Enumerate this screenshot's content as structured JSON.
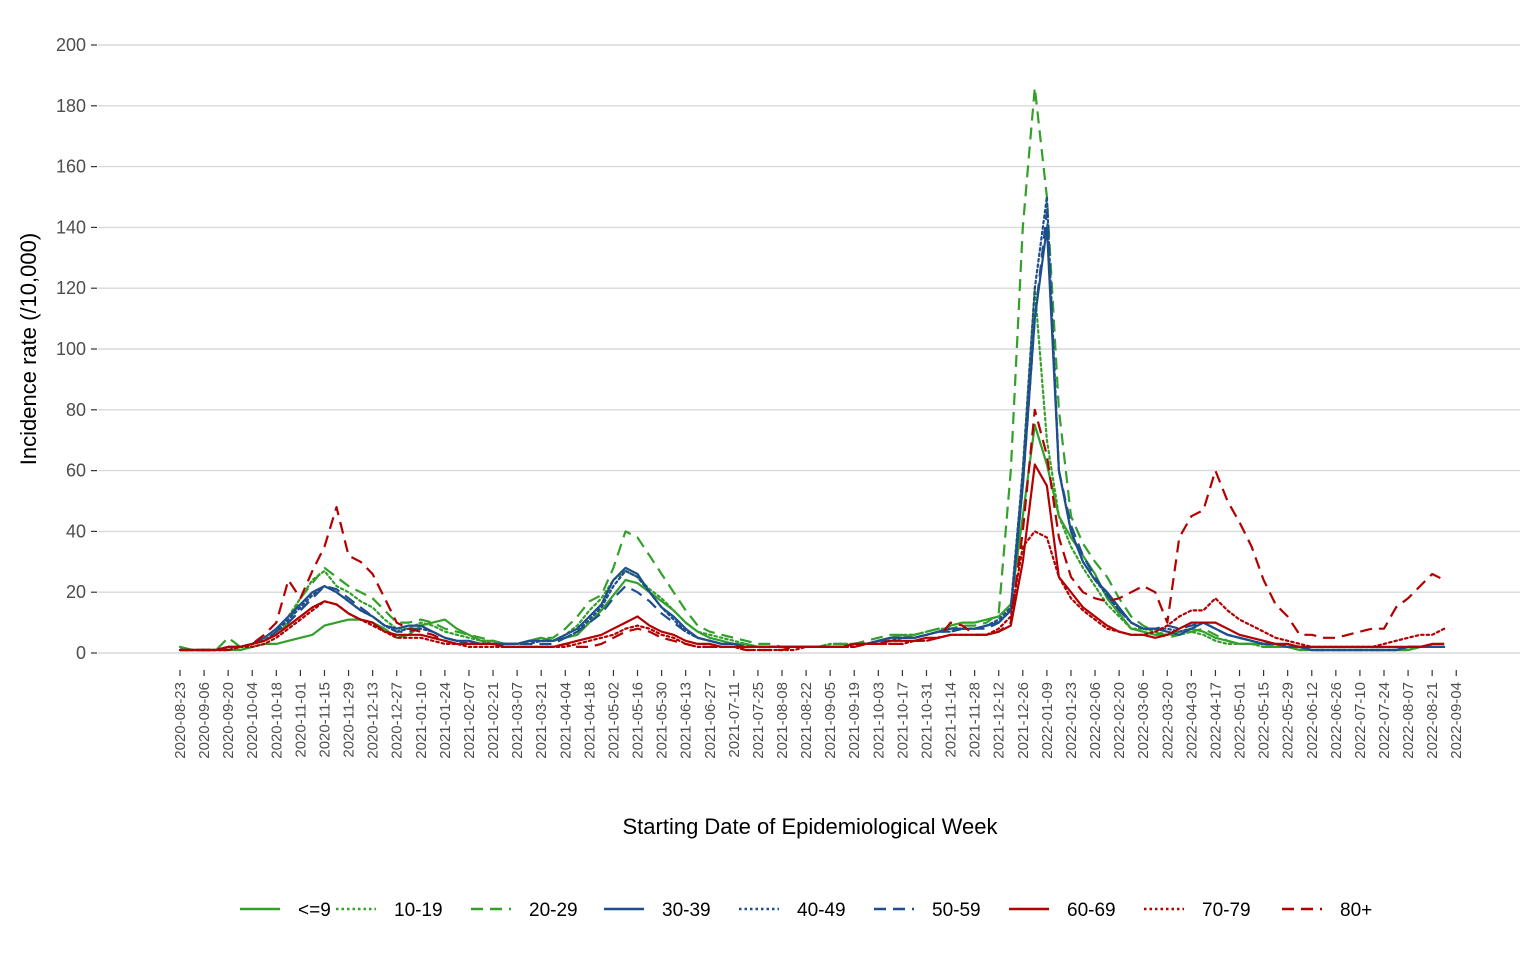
{
  "chart_data": {
    "type": "line",
    "xlabel": "Starting Date of Epidemiological Week",
    "ylabel": "Incidence rate (/10,000)",
    "ylim": [
      0,
      200
    ],
    "yticks": [
      0,
      20,
      40,
      60,
      80,
      100,
      120,
      140,
      160,
      180,
      200
    ],
    "grid": "horizontal",
    "legend_position": "bottom",
    "x": [
      "2020-08-23",
      "2020-08-30",
      "2020-09-06",
      "2020-09-13",
      "2020-09-20",
      "2020-09-27",
      "2020-10-04",
      "2020-10-11",
      "2020-10-18",
      "2020-10-25",
      "2020-11-01",
      "2020-11-08",
      "2020-11-15",
      "2020-11-22",
      "2020-11-29",
      "2020-12-06",
      "2020-12-13",
      "2020-12-20",
      "2020-12-27",
      "2021-01-03",
      "2021-01-10",
      "2021-01-17",
      "2021-01-24",
      "2021-01-31",
      "2021-02-07",
      "2021-02-14",
      "2021-02-21",
      "2021-02-28",
      "2021-03-07",
      "2021-03-14",
      "2021-03-21",
      "2021-03-28",
      "2021-04-04",
      "2021-04-11",
      "2021-04-18",
      "2021-04-25",
      "2021-05-02",
      "2021-05-09",
      "2021-05-16",
      "2021-05-23",
      "2021-05-30",
      "2021-06-06",
      "2021-06-13",
      "2021-06-20",
      "2021-06-27",
      "2021-07-04",
      "2021-07-11",
      "2021-07-18",
      "2021-07-25",
      "2021-08-01",
      "2021-08-08",
      "2021-08-15",
      "2021-08-22",
      "2021-08-29",
      "2021-09-05",
      "2021-09-12",
      "2021-09-19",
      "2021-09-26",
      "2021-10-03",
      "2021-10-10",
      "2021-10-17",
      "2021-10-24",
      "2021-10-31",
      "2021-11-07",
      "2021-11-14",
      "2021-11-21",
      "2021-11-28",
      "2021-12-05",
      "2021-12-12",
      "2021-12-19",
      "2021-12-26",
      "2022-01-02",
      "2022-01-09",
      "2022-01-16",
      "2022-01-23",
      "2022-01-30",
      "2022-02-06",
      "2022-02-13",
      "2022-02-20",
      "2022-02-27",
      "2022-03-06",
      "2022-03-13",
      "2022-03-20",
      "2022-03-27",
      "2022-04-03",
      "2022-04-10",
      "2022-04-17",
      "2022-04-24",
      "2022-05-01",
      "2022-05-08",
      "2022-05-15",
      "2022-05-22",
      "2022-05-29",
      "2022-06-05",
      "2022-06-12",
      "2022-06-19",
      "2022-06-26",
      "2022-07-03",
      "2022-07-10",
      "2022-07-17",
      "2022-07-24",
      "2022-07-31",
      "2022-08-07",
      "2022-08-14",
      "2022-08-21",
      "2022-08-28"
    ],
    "xtick_labels": [
      "2020-08-23",
      "2020-09-06",
      "2020-09-20",
      "2020-10-04",
      "2020-10-18",
      "2020-11-01",
      "2020-11-15",
      "2020-11-29",
      "2020-12-13",
      "2020-12-27",
      "2021-01-10",
      "2021-01-24",
      "2021-02-07",
      "2021-02-21",
      "2021-03-07",
      "2021-03-21",
      "2021-04-04",
      "2021-04-18",
      "2021-05-02",
      "2021-05-16",
      "2021-05-30",
      "2021-06-13",
      "2021-06-27",
      "2021-07-11",
      "2021-07-25",
      "2021-08-08",
      "2021-08-22",
      "2021-09-05",
      "2021-09-19",
      "2021-10-03",
      "2021-10-17",
      "2021-10-31",
      "2021-11-14",
      "2021-11-28",
      "2021-12-12",
      "2021-12-26",
      "2022-01-09",
      "2022-01-23",
      "2022-02-06",
      "2022-02-20",
      "2022-03-06",
      "2022-03-20",
      "2022-04-03",
      "2022-04-17",
      "2022-05-01",
      "2022-05-15",
      "2022-05-29",
      "2022-06-12",
      "2022-06-26",
      "2022-07-10",
      "2022-07-24",
      "2022-08-07",
      "2022-08-21",
      "2022-09-04"
    ],
    "series": [
      {
        "name": "<=9",
        "color": "#33a02c",
        "dash": "solid",
        "values": [
          2,
          1,
          1,
          1,
          1,
          1,
          2,
          3,
          3,
          4,
          5,
          6,
          9,
          10,
          11,
          11,
          10,
          8,
          5,
          6,
          9,
          10,
          11,
          8,
          6,
          4,
          4,
          3,
          3,
          4,
          5,
          4,
          5,
          6,
          10,
          14,
          19,
          24,
          23,
          20,
          17,
          14,
          10,
          7,
          5,
          4,
          3,
          3,
          2,
          2,
          2,
          2,
          2,
          2,
          2,
          2,
          3,
          3,
          4,
          5,
          6,
          5,
          6,
          7,
          9,
          10,
          10,
          11,
          12,
          16,
          45,
          75,
          62,
          45,
          38,
          32,
          26,
          18,
          13,
          8,
          7,
          6,
          6,
          7,
          8,
          7,
          5,
          4,
          3,
          3,
          3,
          2,
          2,
          1,
          1,
          1,
          1,
          1,
          1,
          1,
          1,
          1,
          1,
          2,
          2,
          2
        ]
      },
      {
        "name": "10-19",
        "color": "#33a02c",
        "dash": "dotted",
        "values": [
          2,
          1,
          1,
          1,
          1,
          2,
          3,
          4,
          7,
          12,
          18,
          24,
          27,
          22,
          20,
          17,
          15,
          11,
          8,
          8,
          10,
          9,
          7,
          6,
          5,
          4,
          3,
          3,
          3,
          4,
          4,
          4,
          6,
          9,
          14,
          18,
          24,
          27,
          25,
          21,
          18,
          14,
          10,
          7,
          6,
          5,
          4,
          3,
          2,
          2,
          2,
          2,
          2,
          2,
          3,
          3,
          3,
          3,
          4,
          5,
          6,
          6,
          7,
          8,
          8,
          8,
          8,
          9,
          10,
          14,
          60,
          120,
          70,
          45,
          35,
          28,
          22,
          16,
          12,
          8,
          8,
          7,
          6,
          6,
          7,
          6,
          4,
          3,
          3,
          3,
          2,
          2,
          2,
          1,
          1,
          1,
          1,
          1,
          1,
          1,
          1,
          1,
          1,
          2,
          2,
          2
        ]
      },
      {
        "name": "20-29",
        "color": "#33a02c",
        "dash": "dashed",
        "values": [
          2,
          1,
          1,
          1,
          5,
          2,
          3,
          4,
          6,
          10,
          18,
          23,
          28,
          25,
          22,
          20,
          18,
          14,
          10,
          10,
          11,
          10,
          8,
          7,
          6,
          5,
          4,
          3,
          3,
          4,
          5,
          5,
          8,
          12,
          17,
          19,
          28,
          40,
          38,
          32,
          26,
          20,
          14,
          9,
          7,
          6,
          5,
          4,
          3,
          3,
          2,
          2,
          2,
          2,
          3,
          3,
          3,
          4,
          5,
          6,
          6,
          6,
          7,
          8,
          8,
          9,
          9,
          10,
          13,
          60,
          140,
          186,
          150,
          80,
          45,
          36,
          30,
          25,
          18,
          12,
          9,
          7,
          5,
          6,
          7,
          8,
          6,
          4,
          3,
          3,
          2,
          2,
          2,
          2,
          1,
          1,
          1,
          1,
          1,
          1,
          1,
          1,
          1,
          2,
          2,
          2
        ]
      },
      {
        "name": "30-39",
        "color": "#1f4e8c",
        "dash": "solid",
        "values": [
          1,
          1,
          1,
          1,
          2,
          2,
          3,
          5,
          8,
          12,
          16,
          20,
          22,
          20,
          17,
          14,
          12,
          9,
          8,
          9,
          9,
          7,
          5,
          4,
          4,
          3,
          3,
          3,
          3,
          4,
          4,
          4,
          6,
          8,
          12,
          16,
          24,
          28,
          26,
          20,
          15,
          12,
          8,
          5,
          4,
          3,
          3,
          2,
          2,
          2,
          2,
          2,
          2,
          2,
          2,
          2,
          3,
          3,
          4,
          5,
          5,
          5,
          6,
          7,
          8,
          8,
          8,
          9,
          10,
          14,
          55,
          110,
          140,
          60,
          40,
          30,
          24,
          20,
          15,
          10,
          8,
          8,
          7,
          6,
          8,
          10,
          8,
          6,
          5,
          4,
          3,
          3,
          2,
          2,
          1,
          1,
          1,
          1,
          1,
          1,
          1,
          1,
          2,
          2,
          2,
          2
        ]
      },
      {
        "name": "40-49",
        "color": "#1f4e8c",
        "dash": "dotted",
        "values": [
          1,
          1,
          1,
          1,
          2,
          2,
          3,
          4,
          7,
          11,
          15,
          19,
          22,
          20,
          17,
          14,
          12,
          9,
          7,
          8,
          8,
          7,
          5,
          4,
          3,
          3,
          3,
          3,
          3,
          3,
          4,
          4,
          5,
          7,
          11,
          15,
          22,
          27,
          25,
          20,
          15,
          11,
          7,
          5,
          4,
          3,
          3,
          2,
          2,
          2,
          2,
          2,
          2,
          2,
          2,
          2,
          3,
          3,
          4,
          4,
          5,
          5,
          6,
          7,
          7,
          8,
          8,
          9,
          11,
          15,
          60,
          120,
          150,
          60,
          40,
          30,
          24,
          19,
          14,
          10,
          8,
          8,
          8,
          7,
          8,
          10,
          8,
          6,
          5,
          4,
          3,
          3,
          2,
          2,
          1,
          1,
          1,
          1,
          1,
          1,
          1,
          1,
          2,
          2,
          2,
          2
        ]
      },
      {
        "name": "50-59",
        "color": "#1f4e8c",
        "dash": "dashed",
        "values": [
          1,
          1,
          1,
          1,
          2,
          2,
          3,
          4,
          7,
          10,
          14,
          18,
          22,
          21,
          18,
          15,
          12,
          9,
          7,
          7,
          8,
          7,
          5,
          4,
          3,
          3,
          3,
          3,
          3,
          3,
          3,
          3,
          5,
          7,
          10,
          13,
          18,
          22,
          20,
          17,
          13,
          10,
          7,
          5,
          4,
          3,
          3,
          2,
          2,
          2,
          2,
          2,
          2,
          2,
          2,
          2,
          3,
          3,
          4,
          4,
          5,
          5,
          6,
          7,
          7,
          8,
          8,
          8,
          10,
          14,
          55,
          110,
          145,
          60,
          42,
          32,
          25,
          19,
          14,
          10,
          8,
          8,
          9,
          8,
          9,
          10,
          8,
          6,
          5,
          4,
          3,
          3,
          2,
          2,
          1,
          1,
          1,
          1,
          1,
          1,
          1,
          1,
          2,
          2,
          2,
          2
        ]
      },
      {
        "name": "60-69",
        "color": "#b30000",
        "dash": "solid",
        "values": [
          1,
          1,
          1,
          1,
          2,
          2,
          3,
          4,
          6,
          9,
          12,
          15,
          17,
          16,
          13,
          11,
          10,
          7,
          6,
          6,
          6,
          5,
          4,
          3,
          3,
          3,
          3,
          2,
          2,
          2,
          2,
          2,
          3,
          4,
          5,
          6,
          8,
          10,
          12,
          9,
          7,
          6,
          4,
          3,
          3,
          2,
          2,
          2,
          2,
          2,
          2,
          2,
          2,
          2,
          2,
          2,
          3,
          3,
          3,
          4,
          4,
          4,
          5,
          5,
          6,
          6,
          6,
          6,
          7,
          9,
          30,
          62,
          55,
          25,
          20,
          15,
          12,
          9,
          7,
          6,
          6,
          5,
          6,
          8,
          10,
          10,
          10,
          8,
          6,
          5,
          4,
          3,
          3,
          2,
          2,
          2,
          2,
          2,
          2,
          2,
          2,
          2,
          2,
          2,
          3,
          3
        ]
      },
      {
        "name": "70-79",
        "color": "#b30000",
        "dash": "dotted",
        "values": [
          1,
          1,
          1,
          1,
          1,
          2,
          2,
          3,
          5,
          8,
          11,
          14,
          17,
          16,
          13,
          11,
          9,
          7,
          5,
          5,
          5,
          4,
          3,
          3,
          2,
          2,
          2,
          2,
          2,
          2,
          2,
          2,
          2,
          3,
          4,
          5,
          6,
          8,
          9,
          8,
          6,
          5,
          3,
          2,
          2,
          2,
          2,
          1,
          1,
          1,
          1,
          1,
          2,
          2,
          2,
          2,
          2,
          3,
          3,
          3,
          3,
          4,
          4,
          5,
          6,
          6,
          6,
          6,
          8,
          12,
          35,
          40,
          38,
          25,
          18,
          14,
          11,
          8,
          7,
          6,
          6,
          7,
          9,
          12,
          14,
          14,
          18,
          14,
          11,
          9,
          7,
          5,
          4,
          3,
          2,
          2,
          2,
          2,
          2,
          2,
          3,
          4,
          5,
          6,
          6,
          8
        ]
      },
      {
        "name": "80+",
        "color": "#b30000",
        "dash": "dashed",
        "values": [
          1,
          1,
          1,
          1,
          1,
          2,
          3,
          6,
          10,
          24,
          18,
          27,
          35,
          48,
          32,
          30,
          26,
          18,
          10,
          8,
          7,
          6,
          4,
          3,
          3,
          3,
          3,
          2,
          2,
          2,
          2,
          2,
          3,
          2,
          2,
          3,
          5,
          7,
          8,
          7,
          5,
          4,
          3,
          2,
          2,
          2,
          2,
          1,
          1,
          1,
          1,
          2,
          2,
          2,
          2,
          2,
          2,
          3,
          3,
          3,
          3,
          4,
          4,
          5,
          10,
          9,
          6,
          6,
          7,
          10,
          40,
          80,
          65,
          38,
          25,
          20,
          18,
          17,
          18,
          20,
          22,
          20,
          10,
          38,
          45,
          47,
          60,
          50,
          43,
          35,
          24,
          16,
          12,
          6,
          6,
          5,
          5,
          6,
          7,
          8,
          8,
          15,
          18,
          22,
          26,
          24
        ]
      }
    ]
  }
}
